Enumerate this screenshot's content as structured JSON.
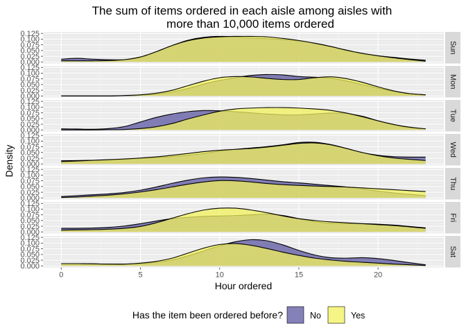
{
  "chart_data": {
    "type": "area",
    "subtype": "ridgeline-density",
    "title_lines": [
      "The sum of items ordered in each aisle among aisles with",
      "more than 10,000 items ordered"
    ],
    "xlabel": "Hour ordered",
    "ylabel": "Density",
    "xlim": [
      -1.15,
      24.15
    ],
    "x_ticks": [
      0,
      5,
      10,
      15,
      20
    ],
    "ylim": [
      0,
      0.125
    ],
    "y_ticks": [
      "0.000",
      "0.025",
      "0.050",
      "0.075",
      "0.100",
      "0.125"
    ],
    "y_tick_values": [
      0,
      0.025,
      0.05,
      0.075,
      0.1,
      0.125
    ],
    "grid": true,
    "panel_background": "#ebebeb",
    "strip_background": "#d9d9d9",
    "legend": {
      "title": "Has the item been ordered before?",
      "position": "bottom",
      "items": [
        {
          "label": "No",
          "color": "#5b55a0"
        },
        {
          "label": "Yes",
          "color": "#f2f25c"
        }
      ]
    },
    "fill_opacity": 0.75,
    "x": [
      0,
      1,
      2,
      3,
      4,
      5,
      6,
      7,
      8,
      9,
      10,
      11,
      12,
      13,
      14,
      15,
      16,
      17,
      18,
      19,
      20,
      21,
      22,
      23
    ],
    "facets": [
      {
        "label": "Sun",
        "no": [
          0.012,
          0.016,
          0.012,
          0.01,
          0.01,
          0.02,
          0.045,
          0.072,
          0.095,
          0.108,
          0.112,
          0.11,
          0.105,
          0.102,
          0.098,
          0.092,
          0.082,
          0.068,
          0.05,
          0.036,
          0.027,
          0.02,
          0.013,
          0.008
        ],
        "yes": [
          0.005,
          0.005,
          0.005,
          0.006,
          0.01,
          0.022,
          0.045,
          0.072,
          0.093,
          0.105,
          0.11,
          0.112,
          0.112,
          0.11,
          0.103,
          0.094,
          0.082,
          0.068,
          0.052,
          0.038,
          0.027,
          0.018,
          0.01,
          0.003
        ]
      },
      {
        "label": "Mon",
        "no": [
          0.0,
          0.0,
          0.0,
          0.0,
          0.001,
          0.003,
          0.008,
          0.018,
          0.033,
          0.052,
          0.068,
          0.08,
          0.09,
          0.094,
          0.092,
          0.085,
          0.082,
          0.078,
          0.066,
          0.05,
          0.034,
          0.02,
          0.01,
          0.005
        ],
        "yes": [
          0.0,
          0.0,
          0.0,
          0.0,
          0.002,
          0.005,
          0.012,
          0.025,
          0.045,
          0.065,
          0.08,
          0.085,
          0.083,
          0.077,
          0.072,
          0.072,
          0.08,
          0.084,
          0.076,
          0.06,
          0.04,
          0.022,
          0.01,
          0.005
        ]
      },
      {
        "label": "Tue",
        "no": [
          0.005,
          0.004,
          0.003,
          0.006,
          0.015,
          0.035,
          0.055,
          0.07,
          0.08,
          0.085,
          0.084,
          0.08,
          0.075,
          0.07,
          0.066,
          0.066,
          0.07,
          0.074,
          0.072,
          0.06,
          0.04,
          0.022,
          0.01,
          0.005
        ],
        "yes": [
          0.0,
          0.0,
          0.0,
          0.001,
          0.002,
          0.006,
          0.014,
          0.028,
          0.048,
          0.066,
          0.082,
          0.092,
          0.096,
          0.098,
          0.098,
          0.096,
          0.092,
          0.086,
          0.074,
          0.058,
          0.04,
          0.024,
          0.012,
          0.005
        ]
      },
      {
        "label": "Wed",
        "no": [
          0.014,
          0.015,
          0.016,
          0.017,
          0.02,
          0.024,
          0.028,
          0.032,
          0.038,
          0.046,
          0.056,
          0.064,
          0.07,
          0.076,
          0.084,
          0.094,
          0.095,
          0.085,
          0.068,
          0.05,
          0.038,
          0.032,
          0.03,
          0.03
        ],
        "yes": [
          0.01,
          0.013,
          0.016,
          0.019,
          0.022,
          0.026,
          0.031,
          0.038,
          0.046,
          0.054,
          0.06,
          0.064,
          0.068,
          0.074,
          0.082,
          0.09,
          0.092,
          0.084,
          0.068,
          0.05,
          0.036,
          0.026,
          0.02,
          0.015
        ]
      },
      {
        "label": "Thu",
        "no": [
          0.006,
          0.01,
          0.014,
          0.018,
          0.024,
          0.034,
          0.048,
          0.064,
          0.078,
          0.088,
          0.092,
          0.09,
          0.085,
          0.078,
          0.071,
          0.066,
          0.06,
          0.054,
          0.048,
          0.04,
          0.03,
          0.022,
          0.016,
          0.01
        ],
        "yes": [
          0.002,
          0.004,
          0.008,
          0.012,
          0.018,
          0.026,
          0.036,
          0.048,
          0.06,
          0.07,
          0.076,
          0.075,
          0.07,
          0.063,
          0.058,
          0.055,
          0.052,
          0.05,
          0.048,
          0.044,
          0.04,
          0.036,
          0.032,
          0.028
        ]
      },
      {
        "label": "Fri",
        "no": [
          0.016,
          0.016,
          0.017,
          0.02,
          0.026,
          0.036,
          0.048,
          0.058,
          0.064,
          0.068,
          0.07,
          0.072,
          0.075,
          0.078,
          0.072,
          0.058,
          0.045,
          0.038,
          0.036,
          0.036,
          0.034,
          0.03,
          0.024,
          0.018
        ],
        "yes": [
          0.008,
          0.009,
          0.01,
          0.012,
          0.016,
          0.024,
          0.04,
          0.06,
          0.08,
          0.096,
          0.104,
          0.104,
          0.096,
          0.084,
          0.07,
          0.058,
          0.05,
          0.044,
          0.04,
          0.036,
          0.032,
          0.028,
          0.022,
          0.016
        ]
      },
      {
        "label": "Sat",
        "no": [
          0.01,
          0.01,
          0.009,
          0.008,
          0.008,
          0.01,
          0.016,
          0.026,
          0.044,
          0.066,
          0.088,
          0.106,
          0.115,
          0.11,
          0.092,
          0.068,
          0.048,
          0.036,
          0.034,
          0.036,
          0.032,
          0.024,
          0.014,
          0.005
        ],
        "yes": [
          0.01,
          0.01,
          0.009,
          0.008,
          0.008,
          0.012,
          0.02,
          0.034,
          0.056,
          0.078,
          0.094,
          0.098,
          0.09,
          0.076,
          0.06,
          0.046,
          0.034,
          0.026,
          0.02,
          0.016,
          0.012,
          0.008,
          0.005,
          0.002
        ]
      }
    ]
  }
}
